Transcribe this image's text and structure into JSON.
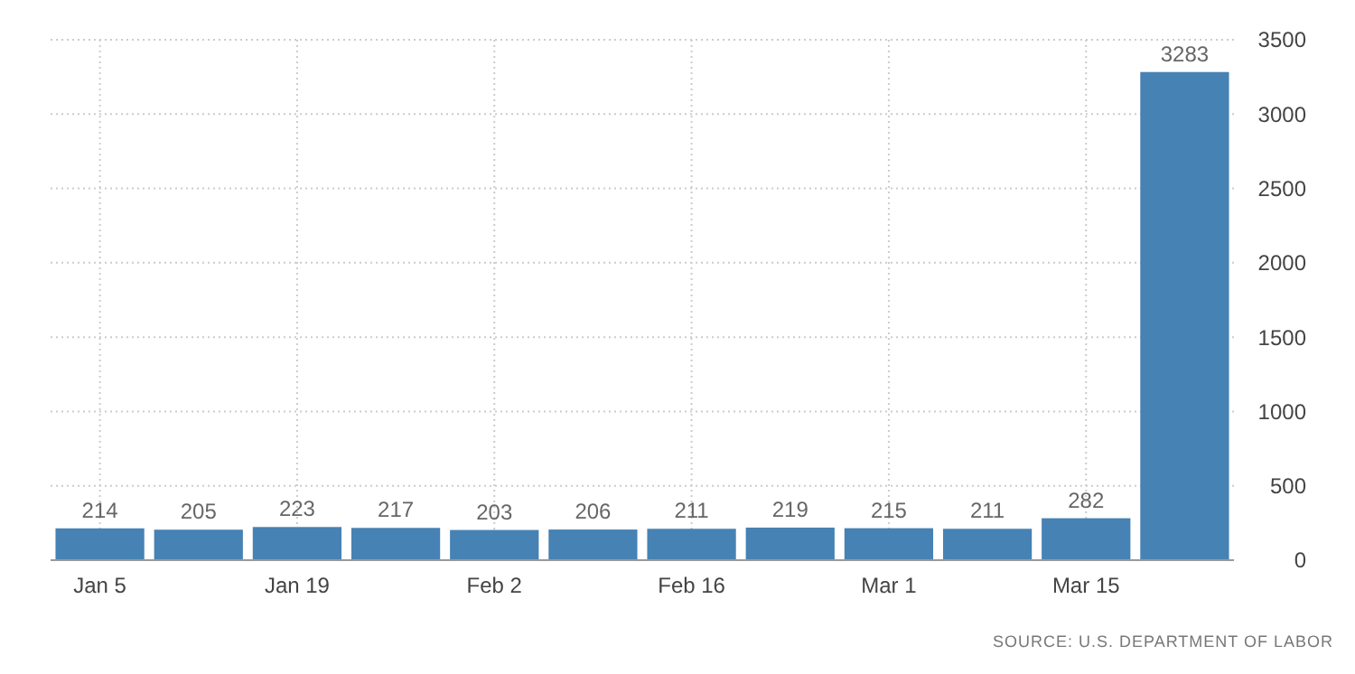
{
  "chart_data": {
    "type": "bar",
    "categories": [
      "Jan 5",
      null,
      "Jan 19",
      null,
      "Feb 2",
      null,
      "Feb 16",
      null,
      "Mar 1",
      null,
      "Mar 15",
      null
    ],
    "values": [
      214,
      205,
      223,
      217,
      203,
      206,
      211,
      219,
      215,
      211,
      282,
      3283
    ],
    "color": "#4682b4",
    "ylim": [
      0,
      3500
    ],
    "yticks": [
      0,
      500,
      1000,
      1500,
      2000,
      2500,
      3000,
      3500
    ],
    "grid": true,
    "data_labels": true,
    "annotations": [
      "SOURCE: U.S. DEPARTMENT OF LABOR"
    ]
  }
}
